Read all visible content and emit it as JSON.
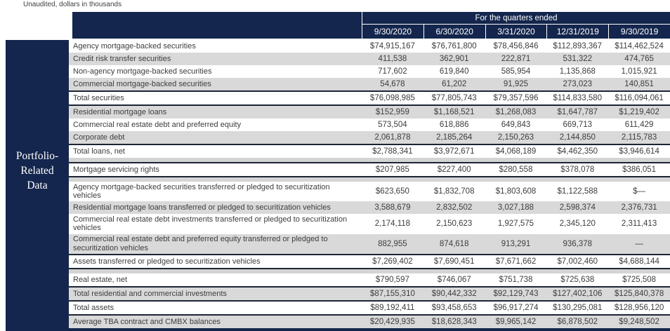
{
  "meta": {
    "note": "Unaudited, dollars in thousands"
  },
  "colors": {
    "navy": "#14264d",
    "row_shade": "#d9d9d9",
    "gap_strip": "#d4d4d4",
    "section_border": "#1c2434",
    "body_text": "#3d3d3d",
    "header_text": "#ffffff"
  },
  "header": {
    "title": "For the quarters ended",
    "columns": [
      "9/30/2020",
      "6/30/2020",
      "3/31/2020",
      "12/31/2019",
      "9/30/2019"
    ]
  },
  "sidebar": {
    "lines": [
      "Portfolio-",
      "Related",
      "Data"
    ]
  },
  "table": {
    "rows": [
      {
        "label": "Agency mortgage-backed securities",
        "values": [
          "$74,915,167",
          "$76,761,800",
          "$78,456,846",
          "$112,893,367",
          "$114,462,524"
        ]
      },
      {
        "shade": true,
        "label": "Credit risk transfer securities",
        "values": [
          "411,538",
          "362,901",
          "222,871",
          "531,322",
          "474,765"
        ]
      },
      {
        "label": "Non-agency mortgage-backed securities",
        "values": [
          "717,602",
          "619,840",
          "585,954",
          "1,135,868",
          "1,015,921"
        ]
      },
      {
        "shade": true,
        "label": "Commercial mortgage-backed securities",
        "values": [
          "54,678",
          "61,202",
          "91,925",
          "273,023",
          "140,851"
        ]
      },
      {
        "bt": true,
        "label": "Total securities",
        "values": [
          "$76,098,985",
          "$77,805,743",
          "$79,357,596",
          "$114,833,580",
          "$116,094,061"
        ]
      },
      {
        "shade": true,
        "bt": true,
        "label": "Residential mortgage loans",
        "values": [
          "$152,959",
          "$1,168,521",
          "$1,268,083",
          "$1,647,787",
          "$1,219,402"
        ]
      },
      {
        "label": "Commercial real estate debt and preferred equity",
        "values": [
          "573,504",
          "618,886",
          "649,843",
          "669,713",
          "611,429"
        ]
      },
      {
        "shade": true,
        "label": "Corporate debt",
        "values": [
          "2,061,878",
          "2,185,264",
          "2,150,263",
          "2,144,850",
          "2,115,783"
        ]
      },
      {
        "bt": true,
        "label": "Total loans, net",
        "values": [
          "$2,788,341",
          "$3,972,671",
          "$4,068,189",
          "$4,462,350",
          "$3,946,614"
        ]
      },
      {
        "gap": true
      },
      {
        "bt": true,
        "bb": true,
        "label": "Mortgage servicing rights",
        "values": [
          "$207,985",
          "$227,400",
          "$280,558",
          "$378,078",
          "$386,051"
        ]
      },
      {
        "gap": true
      },
      {
        "label": "Agency mortgage-backed securities transferred or pledged to securitization vehicles",
        "values": [
          "$623,650",
          "$1,832,708",
          "$1,803,608",
          "$1,122,588",
          "$—"
        ]
      },
      {
        "shade": true,
        "label": "Residential mortgage loans transferred or pledged to securitization vehicles",
        "values": [
          "3,588,679",
          "2,832,502",
          "3,027,188",
          "2,598,374",
          "2,376,731"
        ]
      },
      {
        "label": "Commercial real estate debt investments transferred or pledged to securitization vehicles",
        "values": [
          "2,174,118",
          "2,150,623",
          "1,927,575",
          "2,345,120",
          "2,311,413"
        ]
      },
      {
        "shade": true,
        "label": "Commercial real estate debt and preferred equity transferred or pledged to securitization vehicles",
        "values": [
          "882,955",
          "874,618",
          "913,291",
          "936,378",
          "—"
        ]
      },
      {
        "bt": true,
        "bb": true,
        "label": "Assets transferred or pledged to securitization vehicles",
        "values": [
          "$7,269,402",
          "$7,690,451",
          "$7,671,662",
          "$7,002,460",
          "$4,688,144"
        ]
      },
      {
        "gap": true
      },
      {
        "label": "Real estate, net",
        "values": [
          "$790,597",
          "$746,067",
          "$751,738",
          "$725,638",
          "$725,508"
        ]
      },
      {
        "shade": true,
        "bt": true,
        "label": "Total residential and commercial investments",
        "values": [
          "$87,155,310",
          "$90,442,332",
          "$92,129,743",
          "$127,402,106",
          "$125,840,378"
        ]
      },
      {
        "bt": true,
        "label": "Total assets",
        "values": [
          "$89,192,411",
          "$93,458,653",
          "$96,917,274",
          "$130,295,081",
          "$128,956,120"
        ]
      },
      {
        "shade": true,
        "bt": true,
        "label": "Average TBA contract and CMBX balances",
        "values": [
          "$20,429,935",
          "$18,628,343",
          "$9,965,142",
          "$6,878,502",
          "$9,248,502"
        ]
      }
    ]
  }
}
